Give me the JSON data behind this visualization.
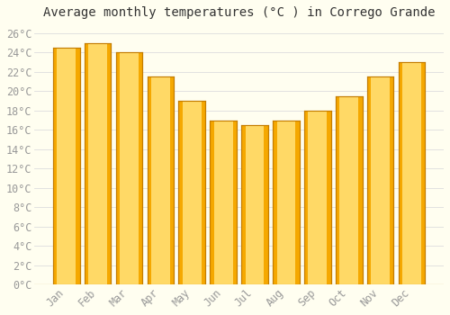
{
  "title": "Average monthly temperatures (°C ) in Corrego Grande",
  "months": [
    "Jan",
    "Feb",
    "Mar",
    "Apr",
    "May",
    "Jun",
    "Jul",
    "Aug",
    "Sep",
    "Oct",
    "Nov",
    "Dec"
  ],
  "values": [
    24.5,
    25.0,
    24.0,
    21.5,
    19.0,
    17.0,
    16.5,
    17.0,
    18.0,
    19.5,
    21.5,
    23.0
  ],
  "bar_color_light": "#FFD966",
  "bar_color_dark": "#F5A800",
  "bar_edge_color": "#C47C00",
  "background_color": "#FFFEF0",
  "grid_color": "#DDDDDD",
  "ylim": [
    0,
    27
  ],
  "yticks": [
    0,
    2,
    4,
    6,
    8,
    10,
    12,
    14,
    16,
    18,
    20,
    22,
    24,
    26
  ],
  "tick_label_suffix": "°C",
  "title_fontsize": 10,
  "axis_fontsize": 8.5,
  "font_family": "monospace",
  "tick_color": "#999999",
  "bar_width": 0.85
}
